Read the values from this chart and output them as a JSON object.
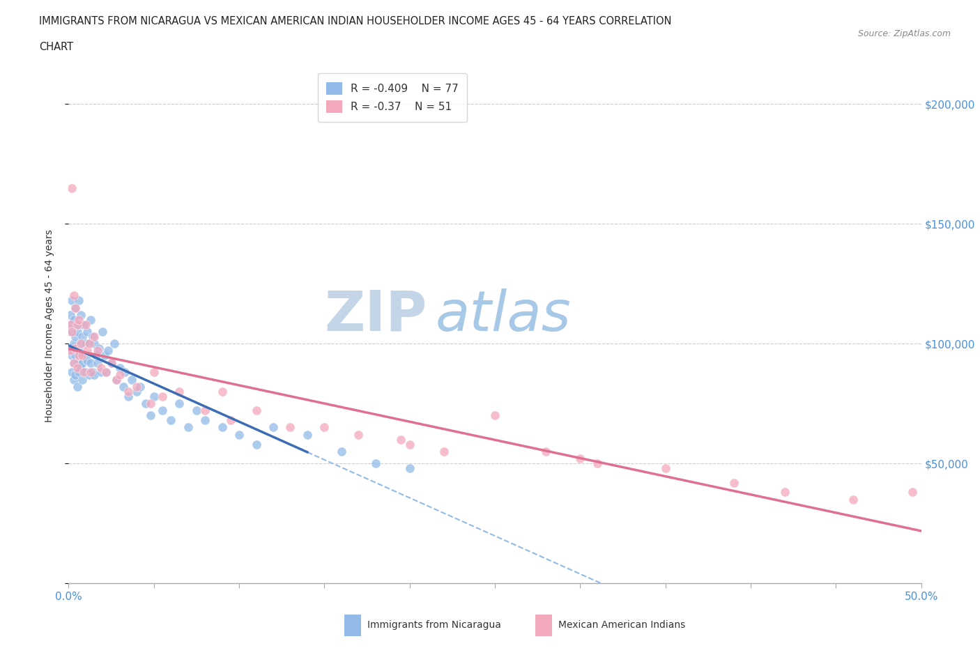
{
  "title_line1": "IMMIGRANTS FROM NICARAGUA VS MEXICAN AMERICAN INDIAN HOUSEHOLDER INCOME AGES 45 - 64 YEARS CORRELATION",
  "title_line2": "CHART",
  "source": "Source: ZipAtlas.com",
  "ylabel": "Householder Income Ages 45 - 64 years",
  "xlim": [
    0.0,
    0.5
  ],
  "ylim": [
    0,
    215000
  ],
  "xticks": [
    0.0,
    0.05,
    0.1,
    0.15,
    0.2,
    0.25,
    0.3,
    0.35,
    0.4,
    0.45,
    0.5
  ],
  "yticks": [
    0,
    50000,
    100000,
    150000,
    200000
  ],
  "yticklabels": [
    "",
    "$50,000",
    "$100,000",
    "$150,000",
    "$200,000"
  ],
  "r_nicaragua": -0.409,
  "n_nicaragua": 77,
  "r_mexican": -0.37,
  "n_mexican": 51,
  "color_nicaragua": "#92BAE8",
  "color_mexican": "#F4A8BC",
  "line_color_nicaragua": "#3B6DB5",
  "line_color_mexican": "#E07090",
  "watermark_zip": "ZIP",
  "watermark_atlas": "atlas",
  "watermark_color_zip": "#C5D5E8",
  "watermark_color_atlas": "#A8C8E8",
  "grid_color": "#CCCCCC",
  "nicaragua_x": [
    0.001,
    0.001,
    0.001,
    0.002,
    0.002,
    0.002,
    0.002,
    0.003,
    0.003,
    0.003,
    0.003,
    0.004,
    0.004,
    0.004,
    0.004,
    0.005,
    0.005,
    0.005,
    0.006,
    0.006,
    0.006,
    0.006,
    0.007,
    0.007,
    0.007,
    0.008,
    0.008,
    0.008,
    0.009,
    0.009,
    0.01,
    0.01,
    0.011,
    0.011,
    0.012,
    0.012,
    0.013,
    0.013,
    0.014,
    0.014,
    0.015,
    0.015,
    0.016,
    0.017,
    0.018,
    0.019,
    0.02,
    0.021,
    0.022,
    0.023,
    0.025,
    0.027,
    0.028,
    0.03,
    0.032,
    0.033,
    0.035,
    0.037,
    0.04,
    0.042,
    0.045,
    0.048,
    0.05,
    0.055,
    0.06,
    0.065,
    0.07,
    0.075,
    0.08,
    0.09,
    0.1,
    0.11,
    0.12,
    0.14,
    0.16,
    0.18,
    0.2
  ],
  "nicaragua_y": [
    105000,
    98000,
    112000,
    95000,
    108000,
    88000,
    118000,
    92000,
    100000,
    85000,
    110000,
    95000,
    103000,
    87000,
    115000,
    105000,
    92000,
    82000,
    118000,
    97000,
    88000,
    108000,
    100000,
    90000,
    112000,
    103000,
    92000,
    85000,
    108000,
    95000,
    100000,
    88000,
    105000,
    93000,
    100000,
    87000,
    110000,
    92000,
    103000,
    88000,
    100000,
    87000,
    95000,
    92000,
    98000,
    88000,
    105000,
    95000,
    88000,
    97000,
    92000,
    100000,
    85000,
    90000,
    82000,
    88000,
    78000,
    85000,
    80000,
    82000,
    75000,
    70000,
    78000,
    72000,
    68000,
    75000,
    65000,
    72000,
    68000,
    65000,
    62000,
    58000,
    65000,
    62000,
    55000,
    50000,
    48000
  ],
  "mexican_x": [
    0.001,
    0.001,
    0.002,
    0.002,
    0.003,
    0.003,
    0.004,
    0.004,
    0.005,
    0.005,
    0.006,
    0.006,
    0.007,
    0.008,
    0.009,
    0.01,
    0.011,
    0.012,
    0.013,
    0.015,
    0.017,
    0.019,
    0.022,
    0.025,
    0.028,
    0.03,
    0.035,
    0.04,
    0.048,
    0.055,
    0.065,
    0.08,
    0.095,
    0.11,
    0.13,
    0.15,
    0.17,
    0.195,
    0.22,
    0.25,
    0.28,
    0.31,
    0.35,
    0.39,
    0.42,
    0.46,
    0.495,
    0.2,
    0.3,
    0.09,
    0.05
  ],
  "mexican_y": [
    108000,
    97000,
    165000,
    105000,
    120000,
    92000,
    115000,
    98000,
    108000,
    90000,
    110000,
    95000,
    100000,
    95000,
    88000,
    108000,
    97000,
    100000,
    88000,
    103000,
    97000,
    90000,
    88000,
    92000,
    85000,
    87000,
    80000,
    82000,
    75000,
    78000,
    80000,
    72000,
    68000,
    72000,
    65000,
    65000,
    62000,
    60000,
    55000,
    70000,
    55000,
    50000,
    48000,
    42000,
    38000,
    35000,
    38000,
    58000,
    52000,
    80000,
    88000
  ]
}
